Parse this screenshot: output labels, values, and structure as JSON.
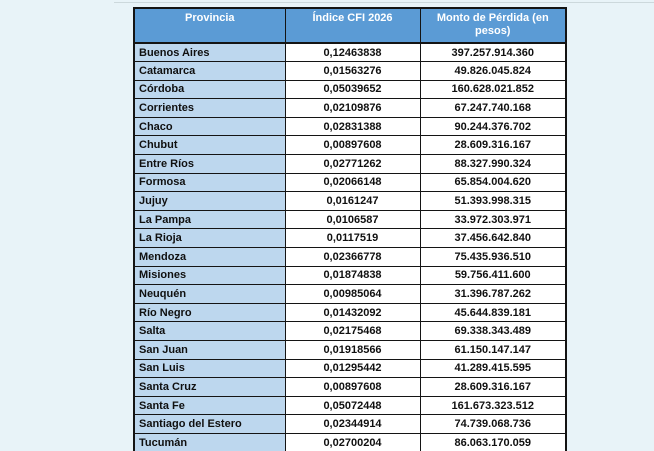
{
  "colors": {
    "page_background": "#e8f3f8",
    "header_background": "#5b9bd5",
    "header_text": "#ffffff",
    "province_column_background": "#bdd7ee",
    "cell_background": "#ffffff",
    "border": "#141414",
    "cell_text": "#101010"
  },
  "chart_data": {
    "type": "table",
    "columns": [
      "Provincia",
      "Índice CFI 2026",
      "Monto de Pérdida (en pesos)"
    ],
    "rows": [
      [
        "Buenos Aires",
        "0,12463838",
        "397.257.914.360"
      ],
      [
        "Catamarca",
        "0,01563276",
        "49.826.045.824"
      ],
      [
        "Córdoba",
        "0,05039652",
        "160.628.021.852"
      ],
      [
        "Corrientes",
        "0,02109876",
        "67.247.740.168"
      ],
      [
        "Chaco",
        "0,02831388",
        "90.244.376.702"
      ],
      [
        "Chubut",
        "0,00897608",
        "28.609.316.167"
      ],
      [
        "Entre Ríos",
        "0,02771262",
        "88.327.990.324"
      ],
      [
        "Formosa",
        "0,02066148",
        "65.854.004.620"
      ],
      [
        "Jujuy",
        "0,0161247",
        "51.393.998.315"
      ],
      [
        "La Pampa",
        "0,0106587",
        "33.972.303.971"
      ],
      [
        "La Rioja",
        "0,0117519",
        "37.456.642.840"
      ],
      [
        "Mendoza",
        "0,02366778",
        "75.435.936.510"
      ],
      [
        "Misiones",
        "0,01874838",
        "59.756.411.600"
      ],
      [
        "Neuquén",
        "0,00985064",
        "31.396.787.262"
      ],
      [
        "Río Negro",
        "0,01432092",
        "45.644.839.181"
      ],
      [
        "Salta",
        "0,02175468",
        "69.338.343.489"
      ],
      [
        "San Juan",
        "0,01918566",
        "61.150.147.147"
      ],
      [
        "San Luis",
        "0,01295442",
        "41.289.415.595"
      ],
      [
        "Santa Cruz",
        "0,00897608",
        "28.609.316.167"
      ],
      [
        "Santa Fe",
        "0,05072448",
        "161.673.323.512"
      ],
      [
        "Santiago del Estero",
        "0,02344914",
        "74.739.068.736"
      ],
      [
        "Tucumán",
        "0,02700204",
        "86.063.170.059"
      ]
    ]
  }
}
